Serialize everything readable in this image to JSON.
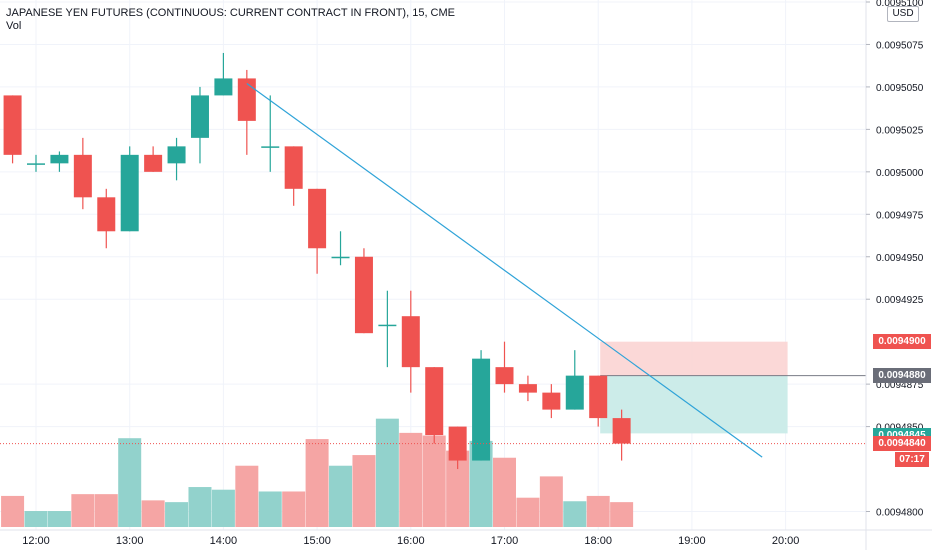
{
  "header": {
    "title": "JAPANESE YEN FUTURES (CONTINUOUS: CURRENT CONTRACT IN FRONT), 15, CME",
    "volume_label": "Vol"
  },
  "currency_label": "USD",
  "colors": {
    "up": "#26a69a",
    "down": "#ef5350",
    "vol_up": "#92d2cc",
    "vol_down": "#f5a5a4",
    "trendline": "#2fa3d8",
    "stop_zone": "#fbd4d3",
    "target_zone": "#c9ebe8"
  },
  "chart_data": {
    "type": "candlestick",
    "y_axis": {
      "ticks": [
        "0.0095100",
        "0.0095075",
        "0.0095050",
        "0.0095025",
        "0.0095000",
        "0.0094975",
        "0.0094950",
        "0.0094925",
        "0.0094875",
        "0.0094850",
        "0.0094800"
      ],
      "ylim": [
        0.0094795,
        0.00951
      ],
      "position": "right"
    },
    "x_axis": {
      "ticks": [
        "12:00",
        "13:00",
        "14:00",
        "15:00",
        "16:00",
        "17:00",
        "18:00",
        "19:00",
        "20:00"
      ]
    },
    "candles": [
      {
        "t": "11:45",
        "o": 0.0095045,
        "h": 0.0095045,
        "l": 0.0095005,
        "c": 0.009501
      },
      {
        "t": "12:00",
        "o": 0.0095005,
        "h": 0.009501,
        "l": 0.0095,
        "c": 0.0095005
      },
      {
        "t": "12:15",
        "o": 0.0095005,
        "h": 0.0095012,
        "l": 0.0095,
        "c": 0.009501
      },
      {
        "t": "12:30",
        "o": 0.009501,
        "h": 0.009502,
        "l": 0.0094978,
        "c": 0.0094985
      },
      {
        "t": "12:45",
        "o": 0.0094985,
        "h": 0.009499,
        "l": 0.0094955,
        "c": 0.0094965
      },
      {
        "t": "13:00",
        "o": 0.0094965,
        "h": 0.0095015,
        "l": 0.0094965,
        "c": 0.009501
      },
      {
        "t": "13:15",
        "o": 0.009501,
        "h": 0.0095015,
        "l": 0.0095,
        "c": 0.0095
      },
      {
        "t": "13:30",
        "o": 0.0095005,
        "h": 0.009502,
        "l": 0.0094995,
        "c": 0.0095015
      },
      {
        "t": "13:45",
        "o": 0.009502,
        "h": 0.009505,
        "l": 0.0095005,
        "c": 0.0095045
      },
      {
        "t": "14:00",
        "o": 0.0095045,
        "h": 0.009507,
        "l": 0.0095045,
        "c": 0.0095055
      },
      {
        "t": "14:15",
        "o": 0.0095055,
        "h": 0.009506,
        "l": 0.009501,
        "c": 0.009503
      },
      {
        "t": "14:30",
        "o": 0.0095015,
        "h": 0.0095045,
        "l": 0.0095,
        "c": 0.0095015
      },
      {
        "t": "14:45",
        "o": 0.0095015,
        "h": 0.0095015,
        "l": 0.009498,
        "c": 0.009499
      },
      {
        "t": "15:00",
        "o": 0.009499,
        "h": 0.009499,
        "l": 0.009494,
        "c": 0.0094955
      },
      {
        "t": "15:15",
        "o": 0.009495,
        "h": 0.0094965,
        "l": 0.0094945,
        "c": 0.009495
      },
      {
        "t": "15:30",
        "o": 0.009495,
        "h": 0.0094955,
        "l": 0.0094905,
        "c": 0.0094905
      },
      {
        "t": "15:45",
        "o": 0.009491,
        "h": 0.009493,
        "l": 0.0094885,
        "c": 0.009491
      },
      {
        "t": "16:00",
        "o": 0.0094915,
        "h": 0.009493,
        "l": 0.009487,
        "c": 0.0094885
      },
      {
        "t": "16:15",
        "o": 0.0094885,
        "h": 0.0094885,
        "l": 0.009484,
        "c": 0.0094845
      },
      {
        "t": "16:30",
        "o": 0.009485,
        "h": 0.009485,
        "l": 0.0094825,
        "c": 0.009483
      },
      {
        "t": "16:45",
        "o": 0.009483,
        "h": 0.0094895,
        "l": 0.009483,
        "c": 0.009489
      },
      {
        "t": "17:00",
        "o": 0.0094885,
        "h": 0.00949,
        "l": 0.009487,
        "c": 0.0094875
      },
      {
        "t": "17:15",
        "o": 0.0094875,
        "h": 0.009488,
        "l": 0.0094865,
        "c": 0.009487
      },
      {
        "t": "17:30",
        "o": 0.009487,
        "h": 0.0094875,
        "l": 0.0094855,
        "c": 0.009486
      },
      {
        "t": "17:45",
        "o": 0.009486,
        "h": 0.0094895,
        "l": 0.009486,
        "c": 0.009488
      },
      {
        "t": "18:00",
        "o": 0.009488,
        "h": 0.009488,
        "l": 0.009485,
        "c": 0.0094855
      },
      {
        "t": "18:15",
        "o": 0.0094855,
        "h": 0.009486,
        "l": 0.009483,
        "c": 0.009484
      }
    ],
    "volume_relative": [
      0.35,
      0.18,
      0.18,
      0.37,
      0.37,
      1.0,
      0.3,
      0.28,
      0.45,
      0.42,
      0.69,
      0.4,
      0.4,
      0.99,
      0.69,
      0.81,
      1.22,
      1.06,
      1.03,
      0.86,
      0.97,
      0.78,
      0.33,
      0.57,
      0.29,
      0.35,
      0.28
    ],
    "trendline": {
      "from": {
        "t": "14:15",
        "price": 0.0095052
      },
      "to": {
        "t": "19:45",
        "price": 0.0094832
      }
    },
    "position_tool": {
      "start": "18:00",
      "end": "20:00",
      "stop_top": 0.00949,
      "entry": 0.009488,
      "target_bottom": 0.0094846
    },
    "price_labels": [
      {
        "value": "0.0094900",
        "color": "#ef5350"
      },
      {
        "value": "0.0094880",
        "color": "#6a6d78"
      },
      {
        "value": "0.0094845",
        "color": "#26a69a"
      },
      {
        "value": "0.0094840",
        "color": "#ef5350"
      }
    ],
    "countdown": "07:17",
    "last_price": 0.009484
  }
}
